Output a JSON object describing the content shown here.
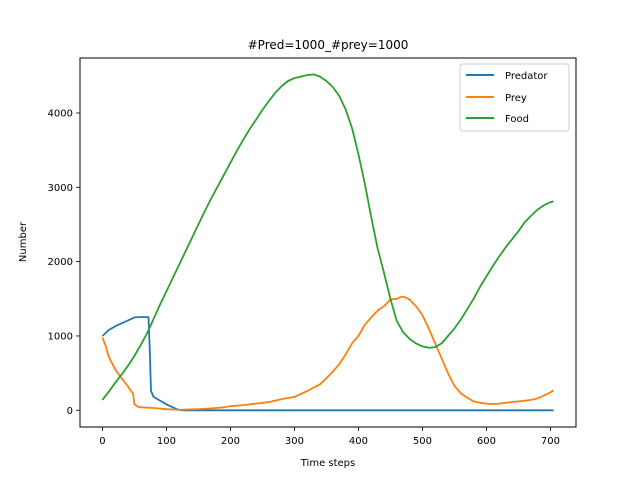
{
  "chart_data": {
    "type": "line",
    "title": "#Pred=1000_#prey=1000",
    "xlabel": "Time steps",
    "ylabel": "Number",
    "xlim": [
      -35,
      740
    ],
    "ylim": [
      -225,
      4740
    ],
    "xticks": [
      0,
      100,
      200,
      300,
      400,
      500,
      600,
      700
    ],
    "yticks": [
      0,
      1000,
      2000,
      3000,
      4000
    ],
    "grid": false,
    "legend_position": "top-right",
    "series": [
      {
        "name": "Predator",
        "color": "#1f77b4",
        "points": [
          [
            0,
            1000
          ],
          [
            10,
            1080
          ],
          [
            20,
            1130
          ],
          [
            30,
            1170
          ],
          [
            40,
            1210
          ],
          [
            50,
            1250
          ],
          [
            60,
            1255
          ],
          [
            70,
            1255
          ],
          [
            72,
            1250
          ],
          [
            74,
            800
          ],
          [
            76,
            260
          ],
          [
            80,
            180
          ],
          [
            90,
            130
          ],
          [
            100,
            80
          ],
          [
            110,
            40
          ],
          [
            115,
            20
          ],
          [
            120,
            5
          ],
          [
            125,
            0
          ],
          [
            705,
            0
          ]
        ]
      },
      {
        "name": "Prey",
        "color": "#ff7f0e",
        "points": [
          [
            0,
            980
          ],
          [
            5,
            870
          ],
          [
            10,
            720
          ],
          [
            20,
            550
          ],
          [
            30,
            430
          ],
          [
            40,
            320
          ],
          [
            48,
            220
          ],
          [
            50,
            80
          ],
          [
            55,
            50
          ],
          [
            60,
            40
          ],
          [
            80,
            30
          ],
          [
            100,
            15
          ],
          [
            110,
            10
          ],
          [
            120,
            5
          ],
          [
            130,
            10
          ],
          [
            150,
            15
          ],
          [
            170,
            25
          ],
          [
            190,
            40
          ],
          [
            200,
            55
          ],
          [
            220,
            70
          ],
          [
            240,
            90
          ],
          [
            260,
            110
          ],
          [
            280,
            150
          ],
          [
            300,
            180
          ],
          [
            310,
            220
          ],
          [
            320,
            260
          ],
          [
            340,
            350
          ],
          [
            350,
            430
          ],
          [
            360,
            520
          ],
          [
            370,
            620
          ],
          [
            380,
            750
          ],
          [
            390,
            900
          ],
          [
            400,
            1000
          ],
          [
            410,
            1150
          ],
          [
            420,
            1250
          ],
          [
            430,
            1340
          ],
          [
            440,
            1400
          ],
          [
            450,
            1490
          ],
          [
            460,
            1500
          ],
          [
            465,
            1520
          ],
          [
            470,
            1530
          ],
          [
            480,
            1490
          ],
          [
            490,
            1400
          ],
          [
            500,
            1280
          ],
          [
            510,
            1100
          ],
          [
            520,
            900
          ],
          [
            530,
            700
          ],
          [
            540,
            500
          ],
          [
            550,
            330
          ],
          [
            560,
            230
          ],
          [
            570,
            170
          ],
          [
            580,
            120
          ],
          [
            590,
            100
          ],
          [
            600,
            90
          ],
          [
            610,
            85
          ],
          [
            620,
            90
          ],
          [
            630,
            100
          ],
          [
            640,
            110
          ],
          [
            650,
            120
          ],
          [
            660,
            130
          ],
          [
            670,
            140
          ],
          [
            680,
            160
          ],
          [
            690,
            200
          ],
          [
            700,
            240
          ],
          [
            705,
            270
          ]
        ]
      },
      {
        "name": "Food",
        "color": "#2ca02c",
        "points": [
          [
            0,
            140
          ],
          [
            10,
            250
          ],
          [
            20,
            370
          ],
          [
            30,
            480
          ],
          [
            40,
            600
          ],
          [
            50,
            730
          ],
          [
            60,
            880
          ],
          [
            70,
            1040
          ],
          [
            80,
            1230
          ],
          [
            90,
            1420
          ],
          [
            100,
            1600
          ],
          [
            110,
            1780
          ],
          [
            120,
            1960
          ],
          [
            130,
            2140
          ],
          [
            140,
            2320
          ],
          [
            150,
            2500
          ],
          [
            160,
            2680
          ],
          [
            170,
            2850
          ],
          [
            180,
            3010
          ],
          [
            190,
            3170
          ],
          [
            200,
            3330
          ],
          [
            210,
            3490
          ],
          [
            220,
            3640
          ],
          [
            230,
            3780
          ],
          [
            240,
            3910
          ],
          [
            250,
            4040
          ],
          [
            260,
            4160
          ],
          [
            270,
            4270
          ],
          [
            280,
            4360
          ],
          [
            290,
            4430
          ],
          [
            300,
            4470
          ],
          [
            310,
            4490
          ],
          [
            320,
            4510
          ],
          [
            330,
            4520
          ],
          [
            340,
            4490
          ],
          [
            350,
            4430
          ],
          [
            360,
            4350
          ],
          [
            370,
            4230
          ],
          [
            380,
            4050
          ],
          [
            390,
            3800
          ],
          [
            400,
            3450
          ],
          [
            410,
            3050
          ],
          [
            420,
            2600
          ],
          [
            430,
            2180
          ],
          [
            440,
            1850
          ],
          [
            450,
            1500
          ],
          [
            460,
            1200
          ],
          [
            470,
            1050
          ],
          [
            480,
            960
          ],
          [
            490,
            900
          ],
          [
            500,
            860
          ],
          [
            510,
            840
          ],
          [
            520,
            850
          ],
          [
            530,
            900
          ],
          [
            540,
            1000
          ],
          [
            550,
            1100
          ],
          [
            560,
            1220
          ],
          [
            570,
            1360
          ],
          [
            580,
            1500
          ],
          [
            590,
            1660
          ],
          [
            600,
            1800
          ],
          [
            610,
            1940
          ],
          [
            620,
            2070
          ],
          [
            630,
            2190
          ],
          [
            640,
            2300
          ],
          [
            650,
            2410
          ],
          [
            660,
            2530
          ],
          [
            670,
            2620
          ],
          [
            680,
            2700
          ],
          [
            690,
            2760
          ],
          [
            700,
            2800
          ],
          [
            705,
            2810
          ]
        ]
      }
    ]
  }
}
